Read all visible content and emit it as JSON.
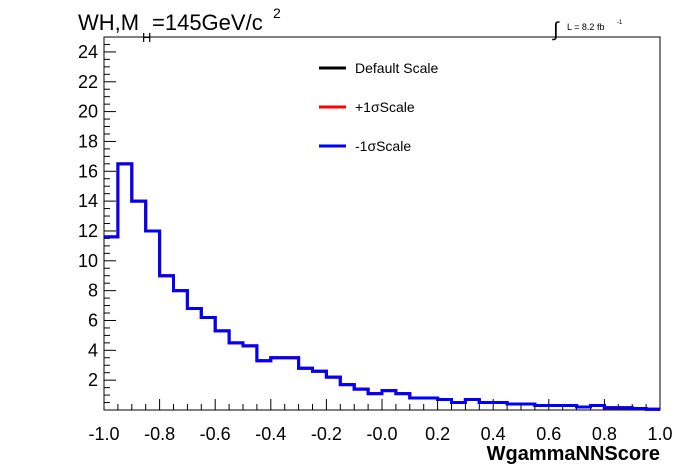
{
  "header": {
    "title_main": "WH,M",
    "title_sub": "H",
    "title_rest": "=145GeV/c",
    "title_sup": "2",
    "integral_symbol": "∫",
    "lumi_text": "L = 8.2 fb",
    "lumi_sup": "-1"
  },
  "chart_data": {
    "type": "line",
    "style": "step-histogram",
    "xlabel": "WgammaNNScore",
    "ylabel": "",
    "xlim": [
      -1.0,
      1.0
    ],
    "ylim": [
      0,
      25
    ],
    "x_ticks": [
      "-1.0",
      "-0.8",
      "-0.6",
      "-0.4",
      "-0.2",
      "-0.0",
      "0.2",
      "0.4",
      "0.6",
      "0.8",
      "1.0"
    ],
    "y_ticks": [
      "2",
      "4",
      "6",
      "8",
      "10",
      "12",
      "14",
      "16",
      "18",
      "20",
      "22",
      "24"
    ],
    "bin_edges": [
      -1.0,
      -0.95,
      -0.9,
      -0.85,
      -0.8,
      -0.75,
      -0.7,
      -0.65,
      -0.6,
      -0.55,
      -0.5,
      -0.45,
      -0.4,
      -0.35,
      -0.3,
      -0.25,
      -0.2,
      -0.15,
      -0.1,
      -0.05,
      0.0,
      0.05,
      0.1,
      0.15,
      0.2,
      0.25,
      0.3,
      0.35,
      0.4,
      0.45,
      0.5,
      0.55,
      0.6,
      0.65,
      0.7,
      0.75,
      0.8,
      0.85,
      0.9,
      0.95,
      1.0
    ],
    "series": [
      {
        "name": "Default Scale",
        "color": "#000000",
        "values": [
          11.6,
          16.5,
          14.0,
          12.0,
          9.0,
          8.0,
          6.8,
          6.2,
          5.3,
          4.5,
          4.3,
          3.3,
          3.5,
          3.5,
          2.8,
          2.6,
          2.2,
          1.7,
          1.4,
          1.1,
          1.3,
          1.1,
          0.8,
          0.8,
          0.7,
          0.5,
          0.7,
          0.5,
          0.5,
          0.4,
          0.4,
          0.3,
          0.3,
          0.3,
          0.2,
          0.3,
          0.15,
          0.15,
          0.1,
          0.05
        ]
      },
      {
        "name": "+1σScale",
        "color": "#ff0000",
        "values": [
          11.6,
          16.5,
          14.0,
          12.0,
          9.0,
          8.0,
          6.8,
          6.2,
          5.3,
          4.5,
          4.3,
          3.3,
          3.5,
          3.5,
          2.8,
          2.6,
          2.2,
          1.7,
          1.4,
          1.1,
          1.3,
          1.1,
          0.8,
          0.8,
          0.7,
          0.5,
          0.7,
          0.5,
          0.5,
          0.4,
          0.4,
          0.3,
          0.3,
          0.3,
          0.2,
          0.3,
          0.15,
          0.15,
          0.1,
          0.05
        ]
      },
      {
        "name": "-1σScale",
        "color": "#0000ff",
        "values": [
          11.6,
          16.5,
          14.0,
          12.0,
          9.0,
          8.0,
          6.8,
          6.2,
          5.3,
          4.5,
          4.3,
          3.3,
          3.5,
          3.5,
          2.8,
          2.6,
          2.2,
          1.7,
          1.4,
          1.1,
          1.3,
          1.1,
          0.8,
          0.8,
          0.7,
          0.5,
          0.7,
          0.5,
          0.5,
          0.4,
          0.4,
          0.3,
          0.3,
          0.3,
          0.2,
          0.3,
          0.15,
          0.15,
          0.1,
          0.05
        ]
      }
    ],
    "legend": {
      "position": "top-center",
      "entries": [
        "Default Scale",
        "+1σScale",
        "-1σScale"
      ]
    },
    "grid": false
  }
}
